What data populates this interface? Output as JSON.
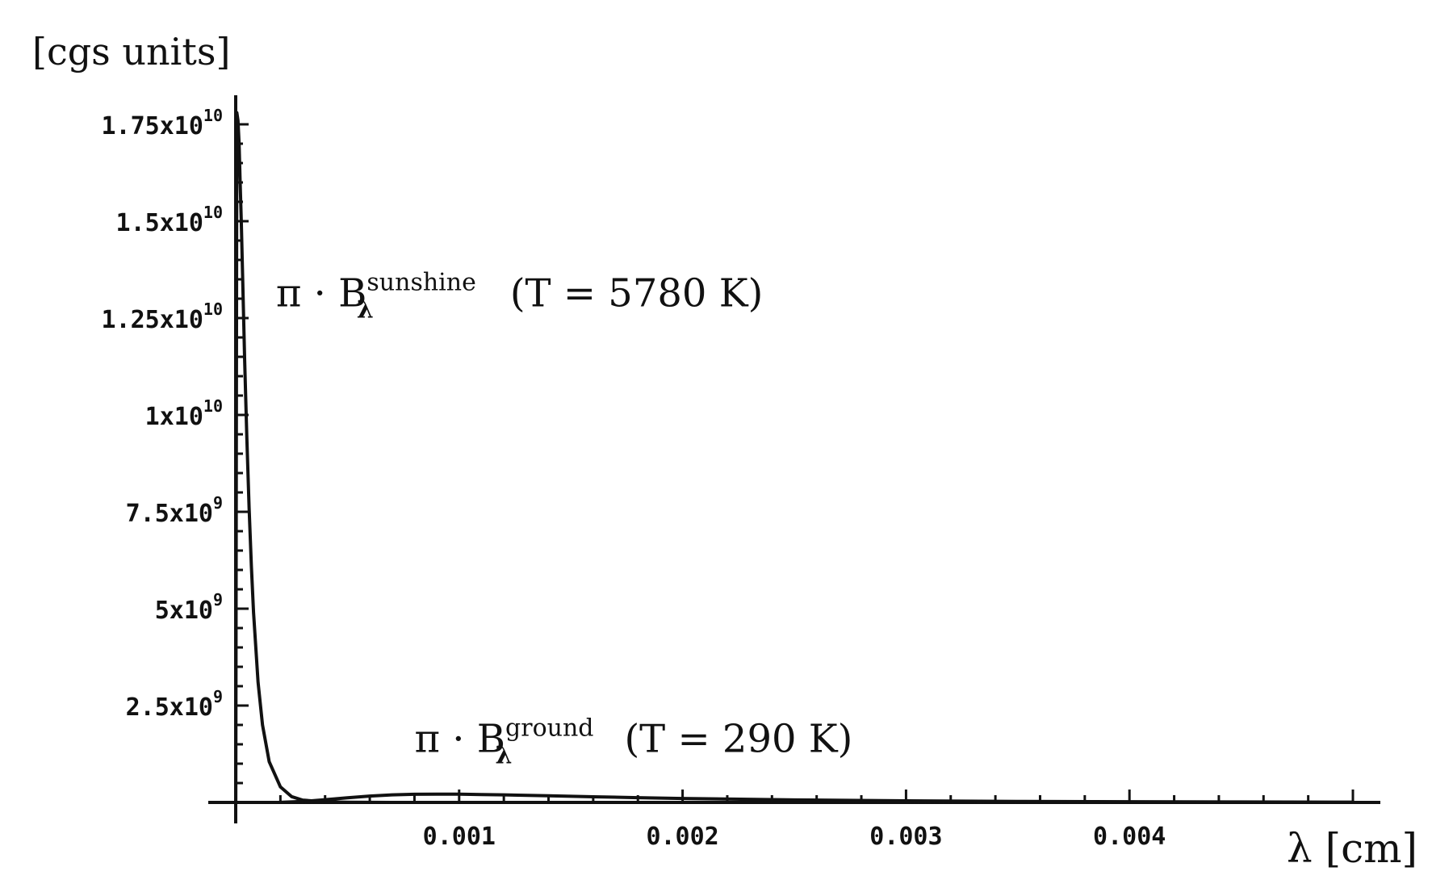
{
  "chart_data": {
    "type": "line",
    "ylabel": "[cgs units]",
    "xlabel": "λ [cm]",
    "xlim": [
      0,
      0.005
    ],
    "ylim": [
      0,
      18000000000
    ],
    "grid": false,
    "x_ticks": [
      {
        "value": 0.001,
        "label": "0.001"
      },
      {
        "value": 0.002,
        "label": "0.002"
      },
      {
        "value": 0.003,
        "label": "0.003"
      },
      {
        "value": 0.004,
        "label": "0.004"
      }
    ],
    "y_ticks": [
      {
        "value": 2500000000,
        "mantissa": "2.5x10",
        "exponent": "9"
      },
      {
        "value": 5000000000,
        "mantissa": "5x10",
        "exponent": "9"
      },
      {
        "value": 7500000000,
        "mantissa": "7.5x10",
        "exponent": "9"
      },
      {
        "value": 10000000000,
        "mantissa": "1x10",
        "exponent": "10"
      },
      {
        "value": 12500000000,
        "mantissa": "1.25x10",
        "exponent": "10"
      },
      {
        "value": 15000000000,
        "mantissa": "1.5x10",
        "exponent": "10"
      },
      {
        "value": 17500000000,
        "mantissa": "1.75x10",
        "exponent": "10"
      }
    ],
    "annotations": [
      {
        "prefix": "π · B",
        "superscript": "sunshine",
        "subscript": "λ",
        "suffix": "(T = 5780 K)",
        "anchor_x": 0.00018,
        "anchor_y": 12800000000
      },
      {
        "prefix": "π · B",
        "superscript": "ground",
        "subscript": "λ",
        "suffix": "(T = 290 K)",
        "anchor_x": 0.0008,
        "anchor_y": 1300000000
      }
    ],
    "series": [
      {
        "x": [
          5e-06,
          1e-05,
          1.5e-05,
          2e-05,
          2.5e-05,
          3e-05,
          4e-05,
          5e-05,
          6e-05,
          7e-05,
          8e-05,
          0.0001,
          0.00012,
          0.00015,
          0.0002,
          0.00025,
          0.0003,
          0.0004,
          0.0005,
          0.0007,
          0.001
        ],
        "y": [
          17800000000,
          17600000000,
          17000000000,
          16000000000,
          15000000000,
          13800000000,
          11400000000,
          9400000000,
          7600000000,
          6100000000,
          4900000000,
          3100000000,
          2000000000,
          1050000000,
          400000000,
          150000000,
          60000000,
          15000000,
          5000000,
          1000000,
          200000
        ]
      },
      {
        "x": [
          0.0001,
          0.0002,
          0.0003,
          0.0004,
          0.0005,
          0.0006,
          0.0007,
          0.0008,
          0.0009,
          0.001,
          0.0011,
          0.0012,
          0.0014,
          0.0016,
          0.0018,
          0.002,
          0.0025,
          0.003,
          0.0035,
          0.004,
          0.0045,
          0.005
        ],
        "y": [
          0,
          2000000,
          25000000,
          70000000,
          120000000,
          165000000,
          195000000,
          210000000,
          215000000,
          212000000,
          205000000,
          195000000,
          170000000,
          145000000,
          122000000,
          102000000,
          65000000,
          42000000,
          28000000,
          19000000,
          13000000,
          9000000
        ]
      }
    ]
  }
}
